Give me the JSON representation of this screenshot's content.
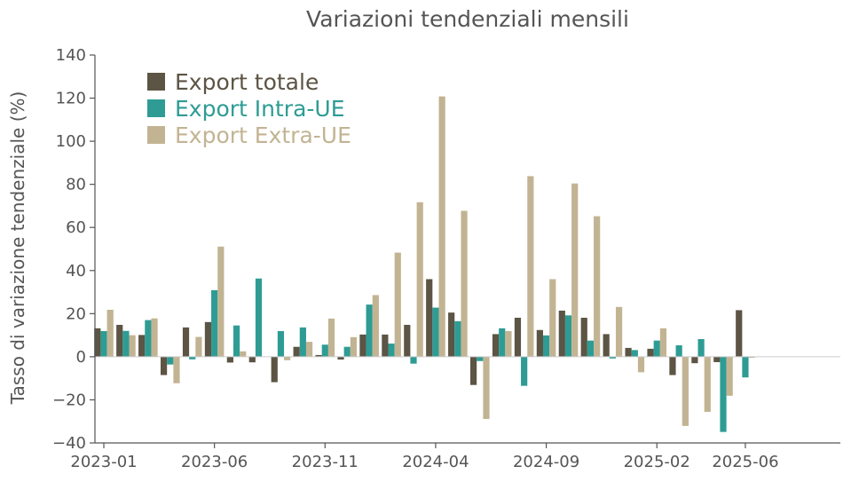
{
  "chart_data": {
    "type": "bar",
    "title": "Variazioni tendenziali mensili",
    "xlabel": "",
    "ylabel": "Tasso di variazione tendenziale (%)",
    "ylim": [
      -40,
      140
    ],
    "yticks": [
      140,
      120,
      100,
      80,
      60,
      40,
      20,
      0,
      -20,
      -40
    ],
    "ytick_labels": [
      "140",
      "120",
      "100",
      "80",
      "60",
      "40",
      "20",
      "0",
      "−20",
      "−40"
    ],
    "xtick_labels": [
      "2023-01",
      "2023-06",
      "2023-11",
      "2024-04",
      "2024-09",
      "2025-02",
      "2025-06"
    ],
    "xtick_categories": [
      "2023-01",
      "2023-06",
      "2023-11",
      "2024-04",
      "2024-09",
      "2025-02",
      "2025-06"
    ],
    "legend_position": "top-left",
    "grid": false,
    "categories": [
      "2023-01",
      "2023-02",
      "2023-03",
      "2023-04",
      "2023-05",
      "2023-06",
      "2023-07",
      "2023-08",
      "2023-09",
      "2023-10",
      "2023-11",
      "2023-12",
      "2024-01",
      "2024-02",
      "2024-03",
      "2024-04",
      "2024-05",
      "2024-06",
      "2024-07",
      "2024-08",
      "2024-09",
      "2024-10",
      "2024-11",
      "2024-12",
      "2025-01",
      "2025-02",
      "2025-03",
      "2025-04",
      "2025-05",
      "2025-06",
      "2025-07",
      "2025-08",
      "2025-09",
      "2025-10",
      "2025-11",
      "2025-12"
    ],
    "series": [
      {
        "name": "Export totale",
        "color": "#5c5444",
        "values": [
          13.2,
          14.8,
          10.1,
          -8.5,
          13.6,
          16.1,
          -2.7,
          -2.6,
          -11.8,
          4.6,
          0.8,
          -1.3,
          10.3,
          10.3,
          14.8,
          36.0,
          20.5,
          -13.1,
          10.5,
          18.1,
          12.4,
          21.4,
          18.1,
          10.5,
          4.1,
          3.7,
          -8.5,
          -3.0,
          -2.5,
          21.6,
          null,
          null,
          null,
          null,
          null,
          null
        ]
      },
      {
        "name": "Export Intra-UE",
        "color": "#2e9c94",
        "values": [
          11.9,
          12.0,
          17.0,
          -3.6,
          -1.2,
          30.9,
          14.5,
          36.3,
          11.9,
          13.6,
          5.6,
          4.6,
          24.2,
          6.1,
          -3.2,
          22.8,
          16.5,
          -2.0,
          13.2,
          -13.5,
          9.9,
          19.2,
          7.5,
          -0.8,
          3.1,
          7.5,
          5.3,
          8.2,
          -34.9,
          -9.6,
          null,
          null,
          null,
          null,
          null,
          null
        ]
      },
      {
        "name": "Export Extra-UE",
        "color": "#c2b493",
        "values": [
          21.8,
          10.0,
          17.8,
          -12.3,
          9.2,
          51.1,
          2.5,
          null,
          -1.6,
          6.9,
          17.7,
          9.1,
          28.6,
          48.3,
          71.7,
          120.8,
          67.7,
          -28.9,
          11.9,
          83.8,
          36.0,
          80.4,
          65.2,
          23.1,
          -7.2,
          13.2,
          -32.1,
          -25.6,
          -18.1,
          -0.5,
          null,
          null,
          null,
          null,
          null,
          null
        ]
      }
    ]
  }
}
